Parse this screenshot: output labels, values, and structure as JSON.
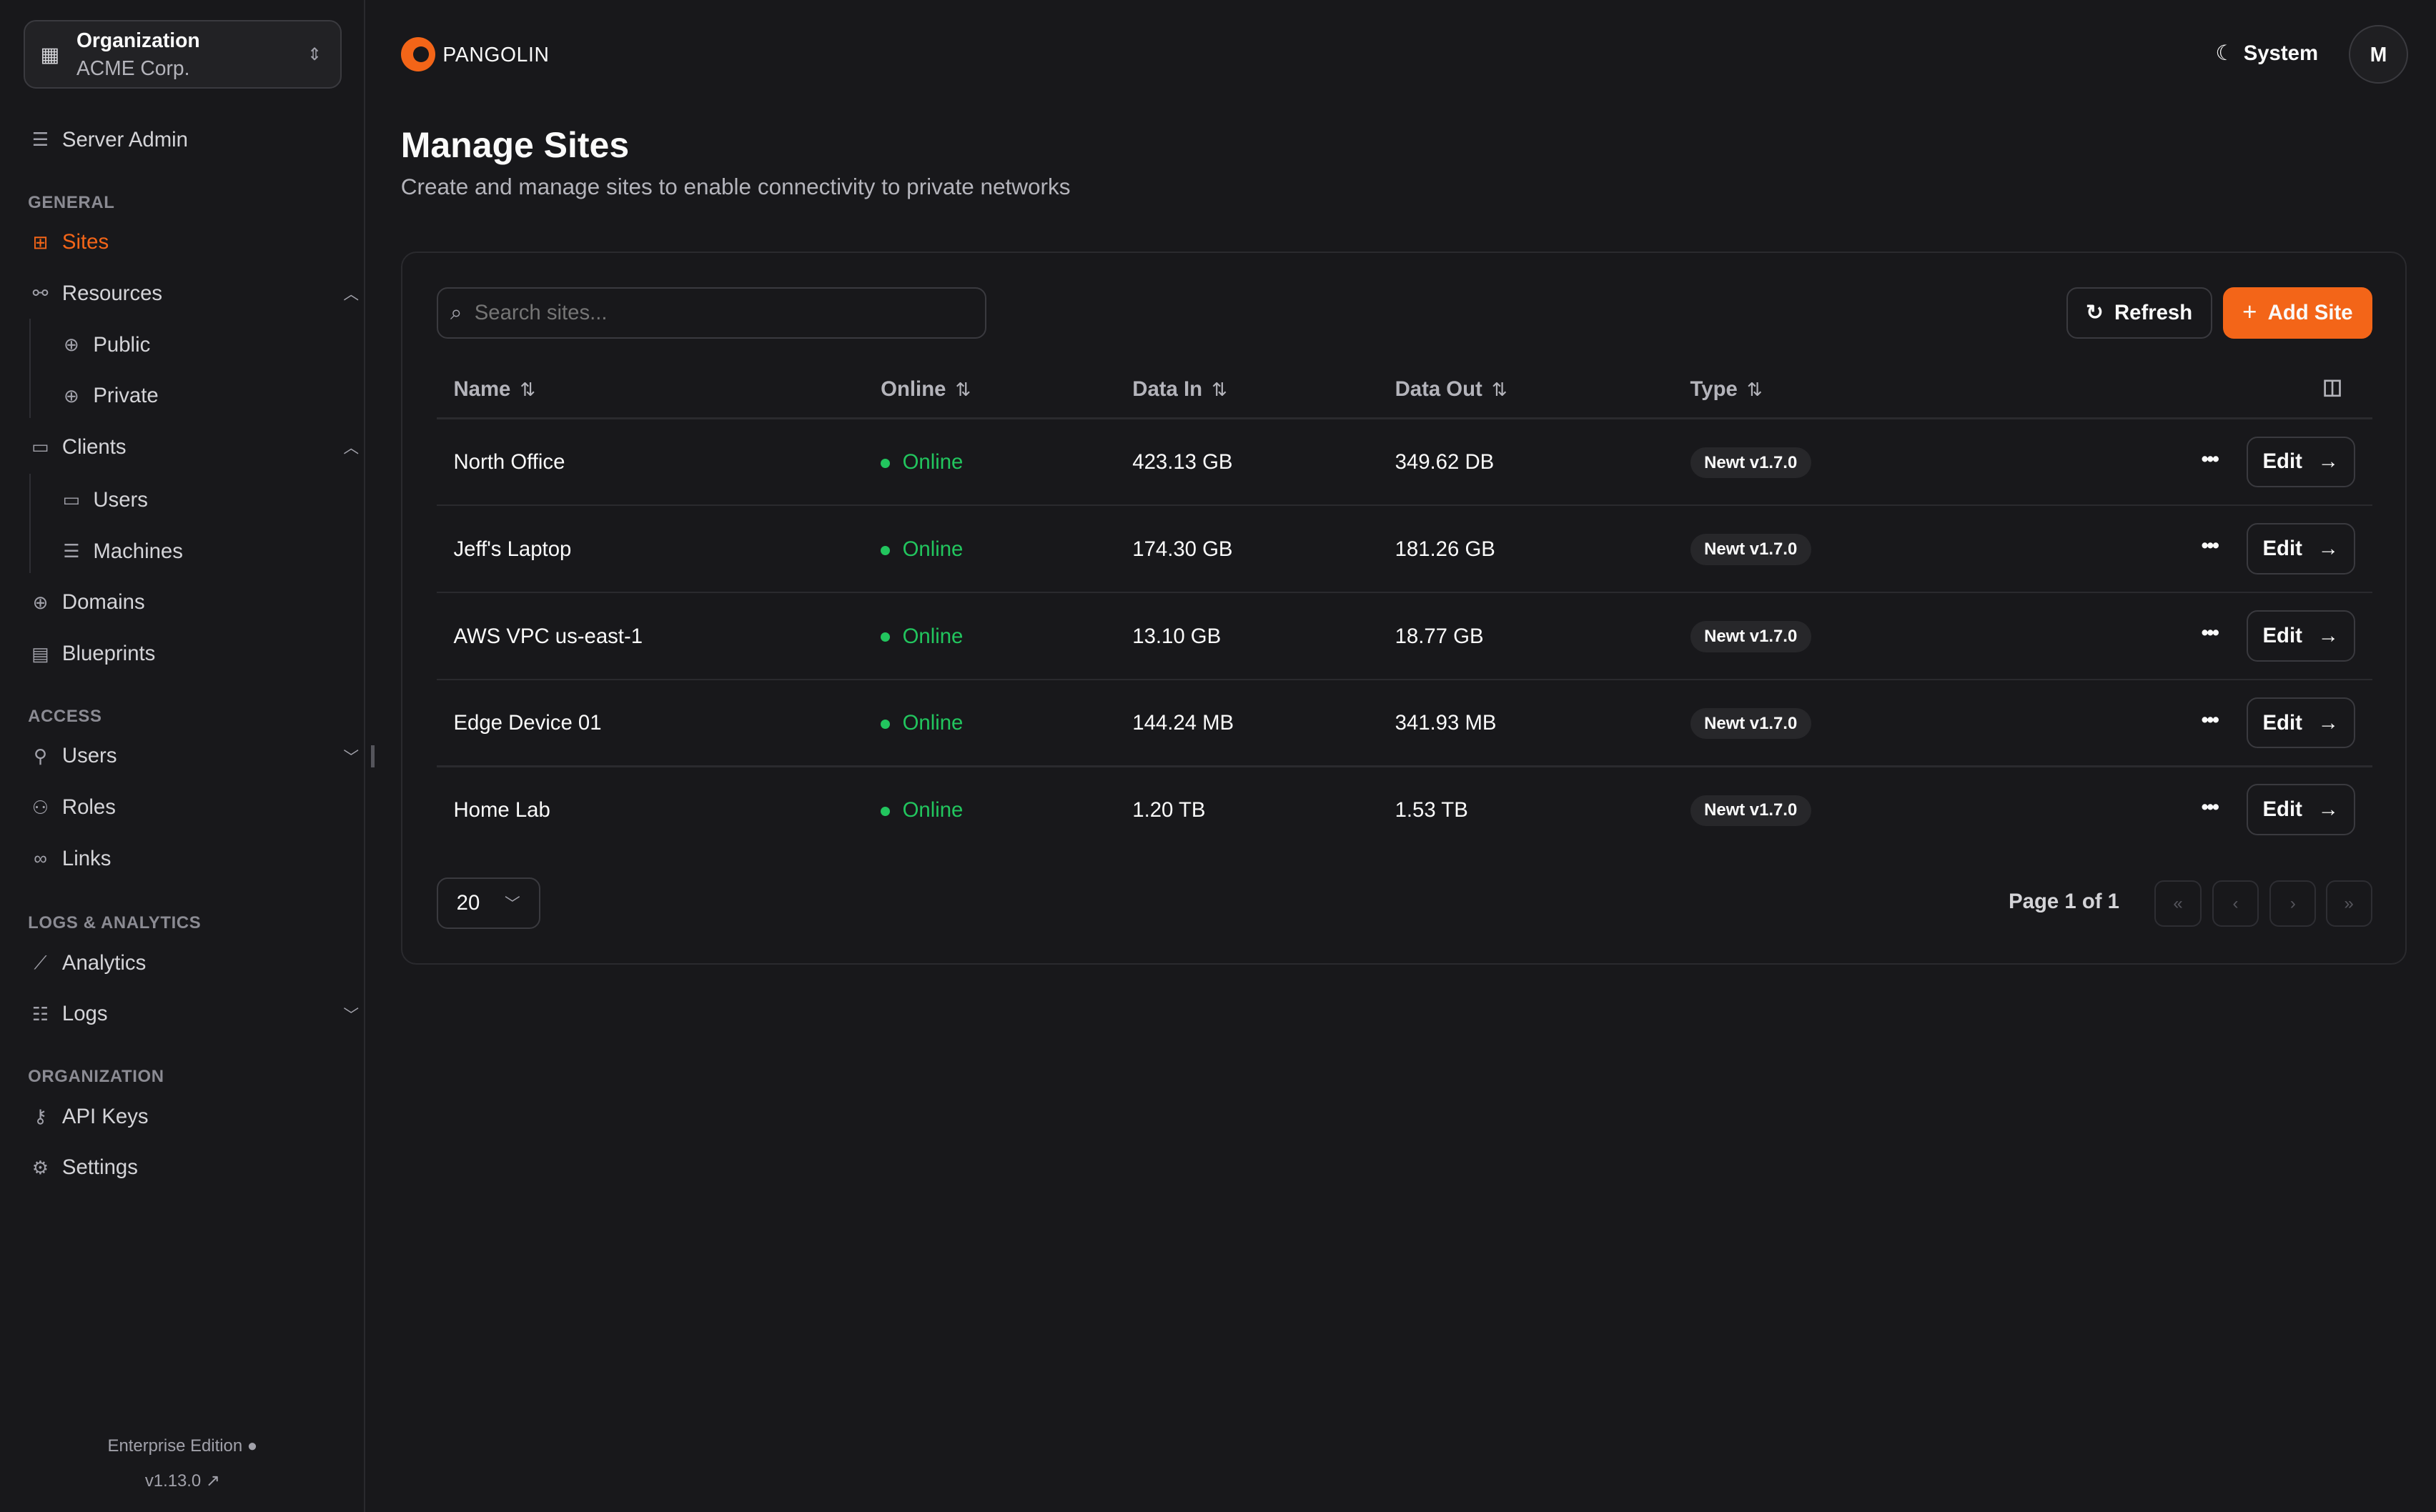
{
  "sidebar": {
    "org": {
      "label": "Organization",
      "name": "ACME Corp."
    },
    "server_admin": "Server Admin",
    "sections": {
      "general": "GENERAL",
      "access": "ACCESS",
      "logs": "LOGS & ANALYTICS",
      "organization": "ORGANIZATION"
    },
    "items": {
      "sites": "Sites",
      "resources": "Resources",
      "public": "Public",
      "private": "Private",
      "clients": "Clients",
      "users_client": "Users",
      "machines": "Machines",
      "domains": "Domains",
      "blueprints": "Blueprints",
      "users": "Users",
      "roles": "Roles",
      "links": "Links",
      "analytics": "Analytics",
      "logs": "Logs",
      "api_keys": "API Keys",
      "settings": "Settings"
    },
    "footer": {
      "edition": "Enterprise Edition",
      "version": "v1.13.0"
    }
  },
  "header": {
    "brand": "PANGOLIN",
    "theme": "System",
    "avatar": "M"
  },
  "page": {
    "title": "Manage Sites",
    "subtitle": "Create and manage sites to enable connectivity to private networks"
  },
  "toolbar": {
    "search_placeholder": "Search sites...",
    "refresh": "Refresh",
    "add": "Add Site"
  },
  "table": {
    "columns": [
      "Name",
      "Online",
      "Data In",
      "Data Out",
      "Type"
    ],
    "rows": [
      {
        "name": "North Office",
        "online": "Online",
        "data_in": "423.13 GB",
        "data_out": "349.62 DB",
        "type": "Newt v1.7.0",
        "action": "Edit"
      },
      {
        "name": "Jeff's Laptop",
        "online": "Online",
        "data_in": "174.30 GB",
        "data_out": "181.26 GB",
        "type": "Newt v1.7.0",
        "action": "Edit"
      },
      {
        "name": "AWS VPC us-east-1",
        "online": "Online",
        "data_in": "13.10 GB",
        "data_out": "18.77 GB",
        "type": "Newt v1.7.0",
        "action": "Edit"
      },
      {
        "name": "Edge Device 01",
        "online": "Online",
        "data_in": "144.24 MB",
        "data_out": "341.93 MB",
        "type": "Newt v1.7.0",
        "action": "Edit"
      },
      {
        "name": "Home Lab",
        "online": "Online",
        "data_in": "1.20 TB",
        "data_out": "1.53 TB",
        "type": "Newt v1.7.0",
        "action": "Edit"
      }
    ]
  },
  "pagination": {
    "page_size": "20",
    "info": "Page 1 of 1"
  },
  "colors": {
    "accent": "#f36518",
    "online": "#22c55e",
    "background": "#18181b"
  }
}
